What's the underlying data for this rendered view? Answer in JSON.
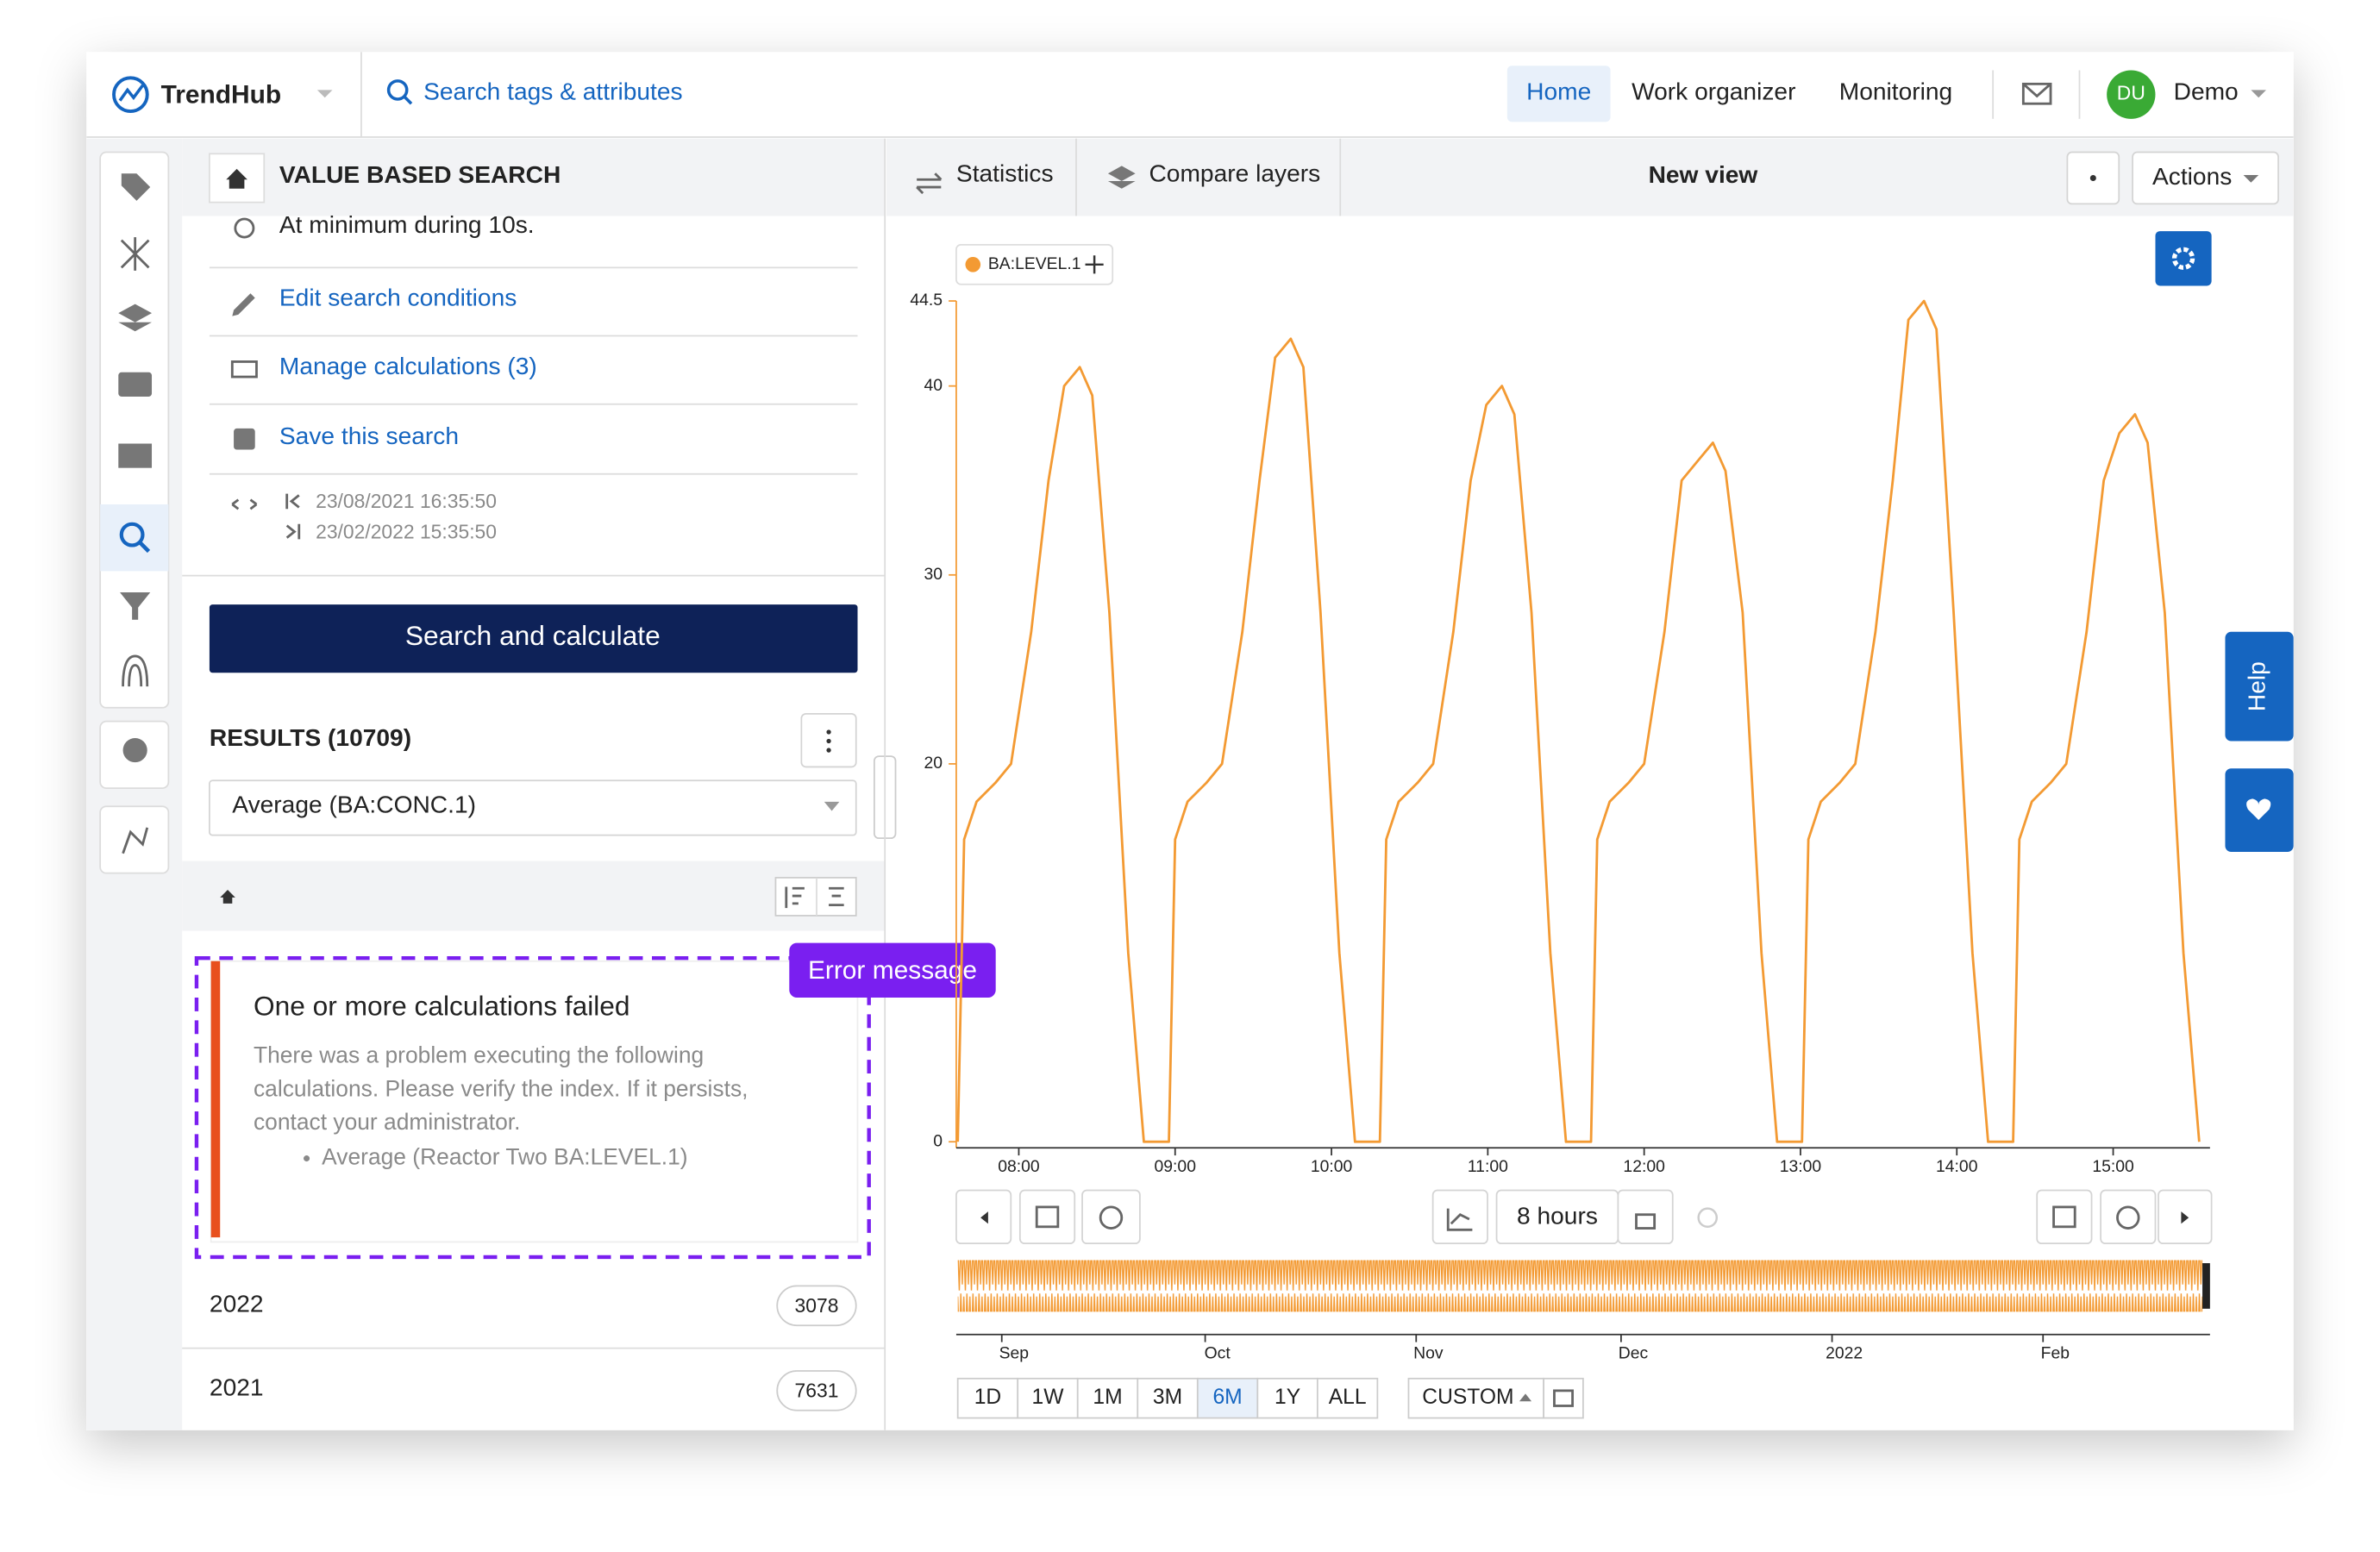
{
  "header": {
    "logo": "TrendHub",
    "search": "Search tags & attributes",
    "nav": [
      "Home",
      "Work organizer",
      "Monitoring"
    ],
    "avatar": "DU",
    "user": "Demo"
  },
  "panel": {
    "title": "VALUE BASED SEARCH",
    "condition": "At minimum during 10s.",
    "links": [
      "Edit search conditions",
      "Manage calculations (3)",
      "Save this search"
    ],
    "date_start": "23/08/2021 16:35:50",
    "date_end": "23/02/2022 15:35:50",
    "button": "Search and calculate",
    "results": "RESULTS (10709)",
    "select": "Average (BA:CONC.1)"
  },
  "error": {
    "tag": "Error message",
    "title": "One or more calculations failed",
    "body_lines": [
      "There was a problem executing the following",
      "calculations. Please verify the index. If it persists,",
      "contact your administrator."
    ],
    "item": "Average (Reactor Two BA:LEVEL.1)"
  },
  "groups": [
    {
      "label": "2022",
      "count": 3078
    },
    {
      "label": "2021",
      "count": 7631
    }
  ],
  "toolbar": {
    "statistics": "Statistics",
    "compare": "Compare layers",
    "view": "New view",
    "actions": "Actions"
  },
  "controls": {
    "window": "8 hours",
    "ranges": [
      "1D",
      "1W",
      "1M",
      "3M",
      "6M",
      "1Y",
      "ALL"
    ],
    "active_range": "6M",
    "custom": "CUSTOM",
    "help": "Help"
  },
  "overview": {
    "labels": [
      "Sep",
      "Oct",
      "Nov",
      "Dec",
      "2022",
      "Feb"
    ]
  },
  "chart_data": {
    "type": "line",
    "legend": "BA:LEVEL.1",
    "xlim": [
      7.6,
      15.6
    ],
    "xticks": [
      {
        "value": 8,
        "label": "08:00"
      },
      {
        "value": 9,
        "label": "09:00"
      },
      {
        "value": 10,
        "label": "10:00"
      },
      {
        "value": 11,
        "label": "11:00"
      },
      {
        "value": 12,
        "label": "12:00"
      },
      {
        "value": 13,
        "label": "13:00"
      },
      {
        "value": 14,
        "label": "14:00"
      },
      {
        "value": 15,
        "label": "15:00"
      }
    ],
    "ylim": [
      0,
      44.5
    ],
    "yticks": [
      0,
      20,
      30,
      40,
      44.5
    ],
    "x": [
      7.61,
      7.65,
      7.73,
      7.85,
      7.95,
      8.08,
      8.19,
      8.29,
      8.39,
      8.47,
      8.58,
      8.7,
      8.8,
      8.96,
      9.0,
      9.08,
      9.2,
      9.3,
      9.43,
      9.54,
      9.64,
      9.74,
      9.82,
      9.93,
      10.05,
      10.15,
      10.31,
      10.35,
      10.43,
      10.55,
      10.65,
      10.78,
      10.89,
      10.99,
      11.09,
      11.17,
      11.28,
      11.4,
      11.5,
      11.66,
      11.7,
      11.78,
      11.9,
      12.0,
      12.13,
      12.24,
      12.34,
      12.44,
      12.52,
      12.63,
      12.75,
      12.85,
      13.01,
      13.05,
      13.13,
      13.25,
      13.35,
      13.48,
      13.59,
      13.69,
      13.79,
      13.87,
      13.98,
      14.1,
      14.2,
      14.36,
      14.4,
      14.48,
      14.6,
      14.7,
      14.83,
      14.94,
      15.04,
      15.14,
      15.22,
      15.33,
      15.45,
      15.55
    ],
    "series": [
      {
        "name": "BA:LEVEL.1",
        "color": "#f39a33",
        "values": [
          0,
          16,
          18,
          19,
          20,
          27,
          35,
          40,
          41,
          39.5,
          28,
          10,
          0,
          0,
          16,
          18,
          19,
          20,
          27,
          35,
          41.5,
          42.5,
          41,
          28,
          10,
          0,
          0,
          16,
          18,
          19,
          20,
          27,
          35,
          39,
          40,
          38.5,
          28,
          10,
          0,
          0,
          16,
          18,
          19,
          20,
          27,
          35,
          36,
          37,
          35.5,
          28,
          10,
          0,
          0,
          16,
          18,
          19,
          20,
          27,
          35,
          43.5,
          44.5,
          43,
          28,
          10,
          0,
          0,
          16,
          18,
          19,
          20,
          27,
          35,
          37.5,
          38.5,
          37,
          28,
          10,
          0
        ]
      }
    ]
  }
}
